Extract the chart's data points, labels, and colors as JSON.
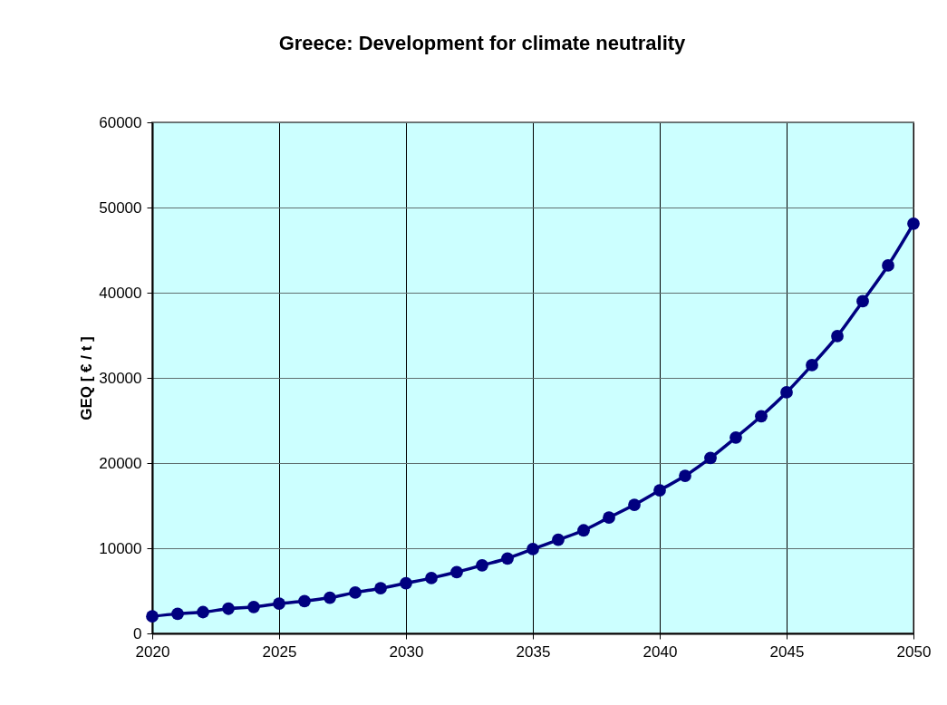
{
  "chart_data": {
    "type": "line",
    "title": "Greece: Development for climate neutrality",
    "ylabel": "GEQ [ € / t ]",
    "x": [
      2020,
      2021,
      2022,
      2023,
      2024,
      2025,
      2026,
      2027,
      2028,
      2029,
      2030,
      2031,
      2032,
      2033,
      2034,
      2035,
      2036,
      2037,
      2038,
      2039,
      2040,
      2041,
      2042,
      2043,
      2044,
      2045,
      2046,
      2047,
      2048,
      2049,
      2050
    ],
    "series": [
      {
        "color": "#000080",
        "values": [
          2000,
          2300,
          2500,
          2900,
          3100,
          3500,
          3800,
          4200,
          4800,
          5300,
          5900,
          6500,
          7200,
          8000,
          8800,
          9900,
          11000,
          12100,
          13600,
          15100,
          16800,
          18500,
          20600,
          23000,
          25500,
          28300,
          31500,
          34900,
          39000,
          43200,
          48100
        ]
      }
    ],
    "xlim": [
      2020,
      2050
    ],
    "xticks": [
      2020,
      2025,
      2030,
      2035,
      2040,
      2045,
      2050
    ],
    "ylim": [
      0,
      60000
    ],
    "yticks": [
      0,
      10000,
      20000,
      30000,
      40000,
      50000,
      60000
    ],
    "grid": true,
    "marker": "circle",
    "line_style": "solid"
  }
}
